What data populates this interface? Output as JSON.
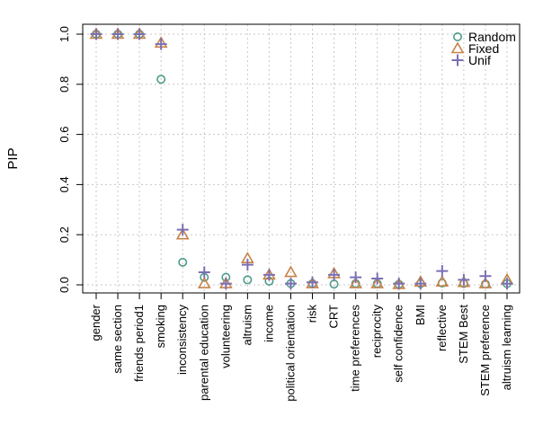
{
  "chart_data": {
    "type": "scatter",
    "title": "",
    "xlabel": "",
    "ylabel": "PIP",
    "ylim": [
      0,
      1
    ],
    "yticks": [
      "0.0",
      "0.2",
      "0.4",
      "0.6",
      "0.8",
      "1.0"
    ],
    "grid": true,
    "legend_position": "top-right",
    "categories": [
      "gender",
      "same section",
      "friends period1",
      "smoking",
      "inconsistency",
      "parental education",
      "volunteering",
      "altruism",
      "income",
      "political orientation",
      "risk",
      "CRT",
      "time preferences",
      "reciprocity",
      "self confidence",
      "BMI",
      "reflective",
      "STEM Best",
      "STEM preference",
      "altruism learning"
    ],
    "series": [
      {
        "name": "Random",
        "marker": "circle",
        "color": "#4e9c8a",
        "values": [
          1.0,
          1.0,
          1.0,
          0.82,
          0.09,
          0.03,
          0.03,
          0.02,
          0.015,
          0.005,
          0.005,
          0.003,
          0.005,
          0.005,
          0.002,
          0.005,
          0.007,
          0.005,
          0.003,
          0.005
        ]
      },
      {
        "name": "Fixed",
        "marker": "triangle",
        "color": "#c8834a",
        "values": [
          1.0,
          1.0,
          1.0,
          0.965,
          0.2,
          0.005,
          0.005,
          0.105,
          0.04,
          0.05,
          0.005,
          0.045,
          0.005,
          0.005,
          0.002,
          0.012,
          0.012,
          0.01,
          0.005,
          0.02
        ]
      },
      {
        "name": "Unif",
        "marker": "plus",
        "color": "#7b6fb5",
        "values": [
          1.0,
          1.0,
          1.0,
          0.96,
          0.22,
          0.05,
          0.005,
          0.08,
          0.04,
          0.005,
          0.01,
          0.04,
          0.03,
          0.025,
          0.005,
          0.005,
          0.055,
          0.02,
          0.035,
          0.005
        ]
      }
    ]
  }
}
